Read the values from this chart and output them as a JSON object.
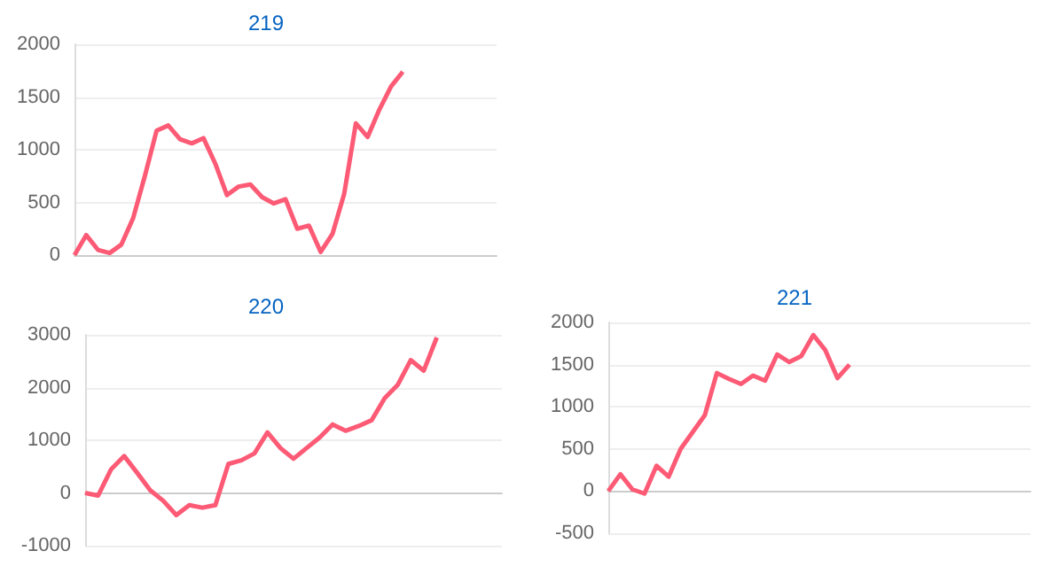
{
  "chart_data": [
    {
      "type": "line",
      "title": "219",
      "color": "#fc5a75",
      "ylim": [
        0,
        2000
      ],
      "yticks": [
        0,
        500,
        1000,
        1500,
        2000
      ],
      "grid": "y",
      "tick_labels": "y",
      "categories": [
        null,
        null,
        null,
        null,
        null,
        null,
        null,
        null,
        null,
        null,
        null,
        null,
        null,
        null,
        null,
        null,
        null,
        null,
        null,
        null,
        null,
        null,
        null,
        null,
        null,
        null,
        null,
        null,
        null,
        null,
        null,
        null,
        null,
        null,
        null,
        null,
        null
      ],
      "values": [
        0,
        190,
        50,
        20,
        100,
        350,
        750,
        1180,
        1230,
        1100,
        1060,
        1110,
        870,
        570,
        650,
        670,
        550,
        490,
        530,
        250,
        280,
        30,
        200,
        580,
        1250,
        1120,
        1380,
        1600,
        1740,
        null,
        null,
        null,
        null,
        null,
        null,
        null,
        null
      ]
    },
    {
      "type": "line",
      "title": "220",
      "color": "#fc5a75",
      "ylim": [
        -1000,
        3000
      ],
      "yticks": [
        -1000,
        0,
        1000,
        2000,
        3000
      ],
      "grid": "y",
      "tick_labels": "y",
      "categories": [
        null,
        null,
        null,
        null,
        null,
        null,
        null,
        null,
        null,
        null,
        null,
        null,
        null,
        null,
        null,
        null,
        null,
        null,
        null,
        null,
        null,
        null,
        null,
        null,
        null,
        null,
        null,
        null,
        null,
        null,
        null,
        null,
        null
      ],
      "values": [
        0,
        -50,
        450,
        700,
        380,
        50,
        -150,
        -420,
        -230,
        -280,
        -230,
        550,
        620,
        750,
        1150,
        850,
        650,
        850,
        1050,
        1300,
        1180,
        1270,
        1380,
        1800,
        2050,
        2520,
        2320,
        2950,
        null,
        null,
        null,
        null,
        null
      ]
    },
    {
      "type": "line",
      "title": "221",
      "color": "#fc5a75",
      "ylim": [
        -500,
        2000
      ],
      "yticks": [
        -500,
        0,
        500,
        1000,
        1500,
        2000
      ],
      "grid": "y",
      "tick_labels": "y",
      "categories": [
        null,
        null,
        null,
        null,
        null,
        null,
        null,
        null,
        null,
        null,
        null,
        null,
        null,
        null,
        null,
        null,
        null,
        null,
        null,
        null,
        null,
        null,
        null,
        null,
        null,
        null,
        null,
        null,
        null,
        null,
        null,
        null,
        null,
        null,
        null,
        null
      ],
      "values": [
        0,
        200,
        20,
        -30,
        300,
        170,
        500,
        700,
        900,
        1400,
        1330,
        1270,
        1370,
        1310,
        1620,
        1530,
        1600,
        1850,
        1670,
        1340,
        1500,
        null,
        null,
        null,
        null,
        null,
        null,
        null,
        null,
        null,
        null,
        null,
        null,
        null,
        null,
        null
      ]
    }
  ]
}
